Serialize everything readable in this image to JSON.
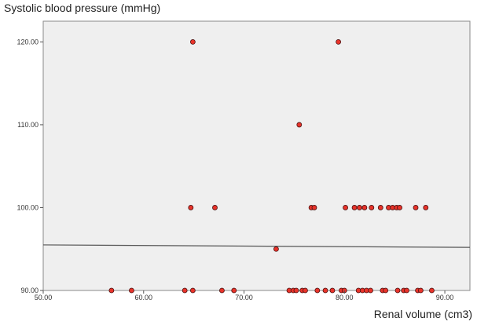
{
  "chart_data": {
    "type": "scatter",
    "xlabel": "Renal volume (cm3)",
    "ylabel": "Systolic blood pressure (mmHg)",
    "xlim": [
      50,
      92.5
    ],
    "ylim": [
      90,
      122.5
    ],
    "x_ticks": [
      50,
      60,
      70,
      80,
      90
    ],
    "y_ticks": [
      90,
      100,
      110,
      120
    ],
    "x_tick_labels": [
      "50.00",
      "60.00",
      "70.00",
      "80.00",
      "90.00"
    ],
    "y_tick_labels": [
      "90.00",
      "100.00",
      "110.00",
      "120.00"
    ],
    "grid": false,
    "plot_background": "#efefef",
    "marker_fill": "#e8332a",
    "marker_stroke": "#4a1010",
    "fit_line_color": "#555555",
    "fit_line": {
      "x": [
        50,
        92.5
      ],
      "y": [
        95.5,
        95.2
      ]
    },
    "series": [
      {
        "points": [
          [
            64.9,
            120
          ],
          [
            79.4,
            120
          ],
          [
            75.5,
            110
          ],
          [
            64.7,
            100
          ],
          [
            67.1,
            100
          ],
          [
            76.7,
            100
          ],
          [
            77.0,
            100
          ],
          [
            80.1,
            100
          ],
          [
            81.0,
            100
          ],
          [
            81.5,
            100
          ],
          [
            82.0,
            100
          ],
          [
            82.7,
            100
          ],
          [
            83.6,
            100
          ],
          [
            84.4,
            100
          ],
          [
            84.8,
            100
          ],
          [
            85.2,
            100
          ],
          [
            85.5,
            100
          ],
          [
            87.1,
            100
          ],
          [
            88.1,
            100
          ],
          [
            73.2,
            95
          ],
          [
            56.8,
            90
          ],
          [
            58.8,
            90
          ],
          [
            64.1,
            90
          ],
          [
            64.9,
            90
          ],
          [
            67.8,
            90
          ],
          [
            69.0,
            90
          ],
          [
            74.5,
            90
          ],
          [
            74.9,
            90
          ],
          [
            75.2,
            90
          ],
          [
            75.8,
            90
          ],
          [
            76.1,
            90
          ],
          [
            77.3,
            90
          ],
          [
            78.1,
            90
          ],
          [
            78.8,
            90
          ],
          [
            79.7,
            90
          ],
          [
            80.0,
            90
          ],
          [
            81.4,
            90
          ],
          [
            81.8,
            90
          ],
          [
            82.2,
            90
          ],
          [
            82.6,
            90
          ],
          [
            83.8,
            90
          ],
          [
            84.1,
            90
          ],
          [
            85.3,
            90
          ],
          [
            85.9,
            90
          ],
          [
            86.2,
            90
          ],
          [
            87.3,
            90
          ],
          [
            87.6,
            90
          ],
          [
            88.7,
            90
          ]
        ]
      }
    ]
  }
}
